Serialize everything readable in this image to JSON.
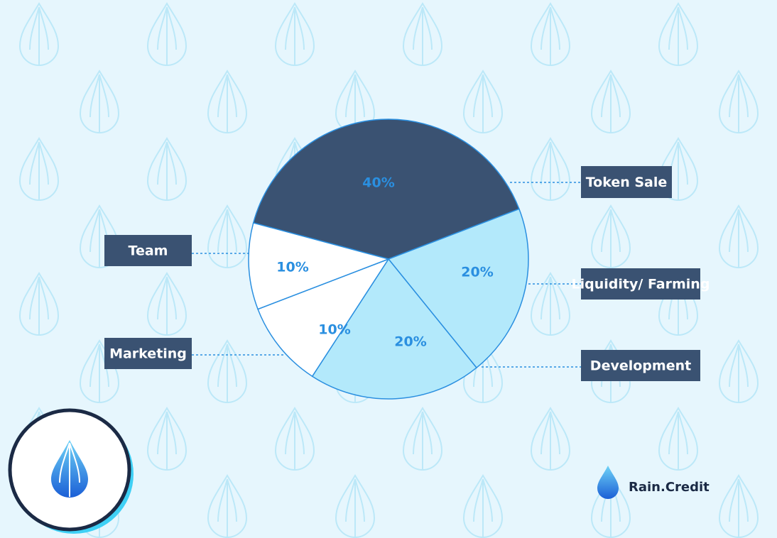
{
  "chart_data": {
    "type": "pie",
    "categories": [
      "Token Sale",
      "Liquidity/ Farming",
      "Development",
      "Marketing",
      "Team"
    ],
    "values": [
      40,
      20,
      20,
      10,
      10
    ],
    "value_labels": [
      "40%",
      "20%",
      "20%",
      "10%",
      "10%"
    ],
    "colors": [
      "#3a5272",
      "#b3e9fb",
      "#b3e9fb",
      "#ffffff",
      "#ffffff"
    ]
  },
  "brand": "Rain.Credit"
}
